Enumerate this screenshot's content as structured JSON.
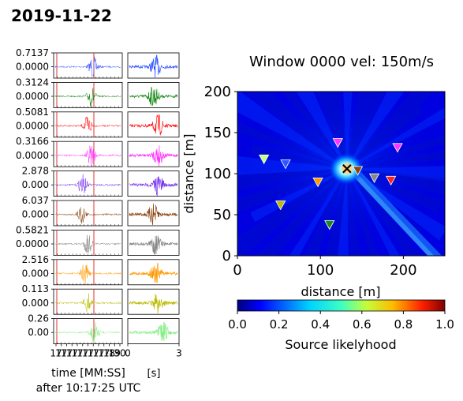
{
  "figure": {
    "date_title": "2019-11-22",
    "window_title": "Window 0000  vel: 150m/s",
    "time_xlabel": "time [MM:SS]",
    "time_xlabel_sub": "after 10:17:25 UTC",
    "zoom_xlabel": "[s]",
    "zoom_ticks": [
      "0",
      "3"
    ],
    "time_ticks": [
      "17",
      "17",
      "17",
      "17",
      "17",
      "17",
      "17",
      "17",
      "17",
      "17",
      "18",
      "19",
      "30"
    ],
    "trace_rows": [
      {
        "color": "#3355ff",
        "ytick_top": "0.7137",
        "ytick_mid": "0.0000"
      },
      {
        "color": "#1a8a1a",
        "ytick_top": "0.3124",
        "ytick_mid": "0.0000"
      },
      {
        "color": "#ff2222",
        "ytick_top": "0.5081",
        "ytick_mid": "0.0000"
      },
      {
        "color": "#ff33ff",
        "ytick_top": "0.3166",
        "ytick_mid": "0.0000"
      },
      {
        "color": "#7733ee",
        "ytick_top": "2.878",
        "ytick_mid": "0.000"
      },
      {
        "color": "#8b4513",
        "ytick_top": "6.037",
        "ytick_mid": "0.000"
      },
      {
        "color": "#888888",
        "ytick_top": "0.5821",
        "ytick_mid": "0.0000"
      },
      {
        "color": "#ff9900",
        "ytick_top": "2.516",
        "ytick_mid": "0.000"
      },
      {
        "color": "#bbbb00",
        "ytick_top": "0.113",
        "ytick_mid": "0.000"
      },
      {
        "color": "#88ee88",
        "ytick_top": "0.26",
        "ytick_mid": "0.00"
      }
    ],
    "map": {
      "xlabel": "distance [m]",
      "ylabel": "distance [m]",
      "xlim": [
        0,
        250
      ],
      "ylim": [
        0,
        200
      ],
      "xticks": [
        "0",
        "100",
        "200"
      ],
      "yticks": [
        "0",
        "50",
        "100",
        "150",
        "200"
      ],
      "source": {
        "x": 132,
        "y": 106
      }
    },
    "colorbar": {
      "label": "Source likelyhood",
      "ticks": [
        "0.0",
        "0.2",
        "0.4",
        "0.6",
        "0.8",
        "1.0"
      ]
    }
  },
  "chart_data": {
    "type": "heatmap",
    "title": "Window 0000  vel: 150m/s",
    "xlabel": "distance [m]",
    "ylabel": "distance [m]",
    "xlim": [
      0,
      250
    ],
    "ylim": [
      0,
      200
    ],
    "colorbar_label": "Source likelyhood",
    "colorbar_range": [
      0.0,
      1.0
    ],
    "colormap": "jet",
    "max_likelihood_location": {
      "x": 132,
      "y": 106
    },
    "stations": [
      {
        "x": 32,
        "y": 118,
        "color": "#c8ff78"
      },
      {
        "x": 58,
        "y": 112,
        "color": "#3355ff"
      },
      {
        "x": 52,
        "y": 62,
        "color": "#bbbb00"
      },
      {
        "x": 97,
        "y": 90,
        "color": "#ff9900"
      },
      {
        "x": 111,
        "y": 38,
        "color": "#1a8a1a"
      },
      {
        "x": 121,
        "y": 138,
        "color": "#ff33ff"
      },
      {
        "x": 145,
        "y": 104,
        "color": "#8b4513"
      },
      {
        "x": 165,
        "y": 95,
        "color": "#888888"
      },
      {
        "x": 185,
        "y": 92,
        "color": "#ff2222"
      },
      {
        "x": 193,
        "y": 132,
        "color": "#ff33ff"
      }
    ]
  }
}
